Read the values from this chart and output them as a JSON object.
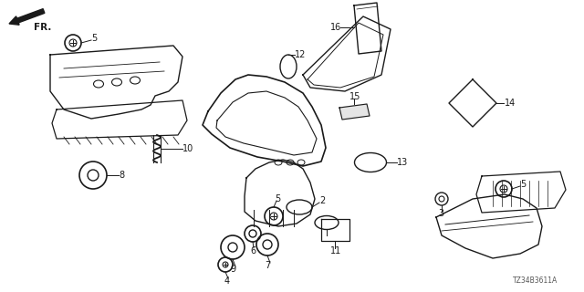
{
  "title": "",
  "background_color": "#ffffff",
  "fig_width": 6.4,
  "fig_height": 3.2,
  "dpi": 100,
  "diagram_code": "TZ34B3611A",
  "line_color": "#1a1a1a",
  "text_color": "#1a1a1a"
}
